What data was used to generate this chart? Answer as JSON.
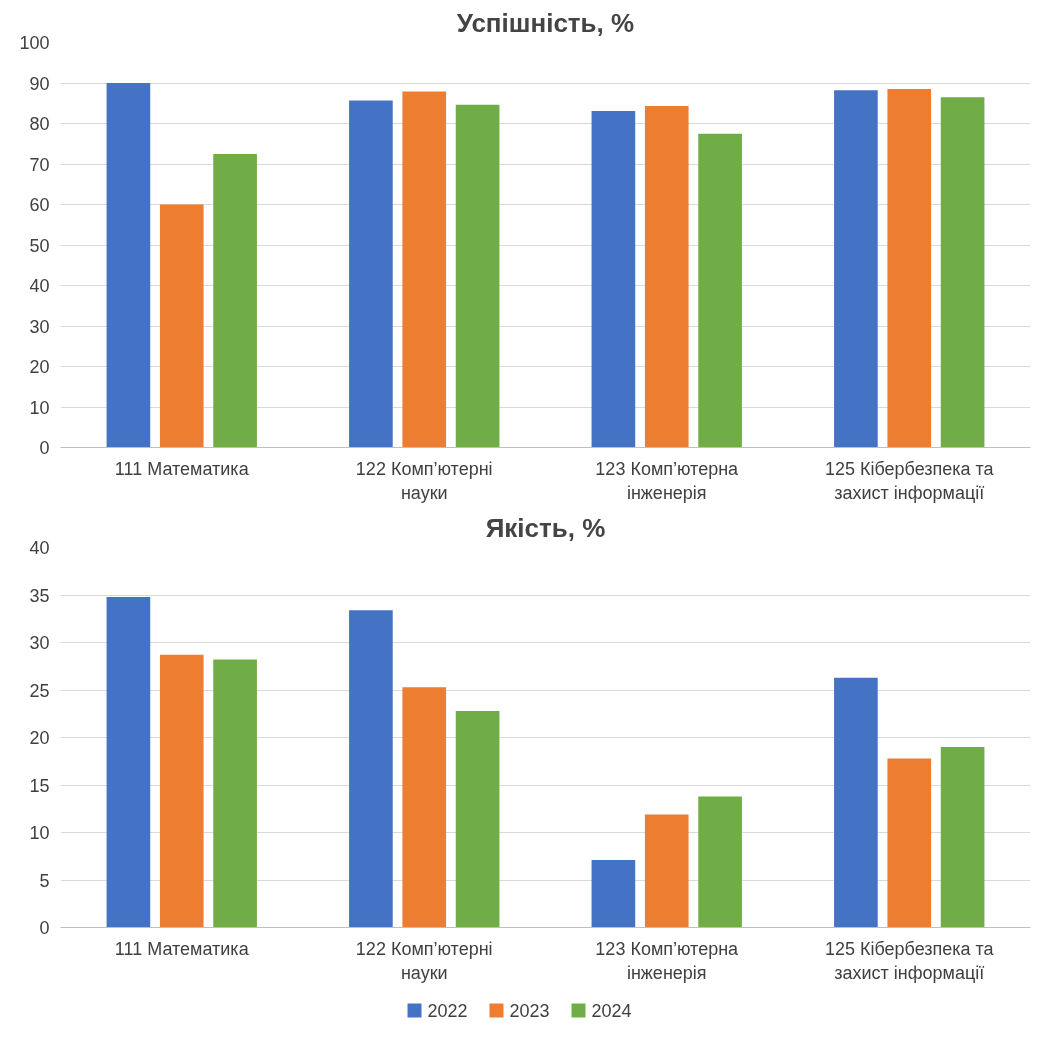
{
  "chart_data": [
    {
      "type": "bar",
      "title": "Успішність, %",
      "categories": [
        "111 Математика",
        "122 Комп’ютерні науки",
        "123 Комп’ютерна інженерія",
        "125 Кібербезпека та захист інформації"
      ],
      "series": [
        {
          "name": "2022",
          "color": "#4472c4",
          "values": [
            90,
            85.7,
            83.1,
            88.2
          ]
        },
        {
          "name": "2023",
          "color": "#ed7d31",
          "values": [
            60,
            87.9,
            84.3,
            88.5
          ]
        },
        {
          "name": "2024",
          "color": "#70ad47",
          "values": [
            72.5,
            84.6,
            77.5,
            86.5
          ]
        }
      ],
      "ylim": [
        0,
        100
      ],
      "yticks": [
        0,
        10,
        20,
        30,
        40,
        50,
        60,
        70,
        80,
        90,
        100
      ],
      "grid": "y",
      "legend": "bottom"
    },
    {
      "type": "bar",
      "title": "Якість, %",
      "categories": [
        "111 Математика",
        "122 Комп’ютерні науки",
        "123 Комп’ютерна інженерія",
        "125 Кібербезпека та захист інформації"
      ],
      "series": [
        {
          "name": "2022",
          "color": "#4472c4",
          "values": [
            34.8,
            33.4,
            7.1,
            26.3
          ]
        },
        {
          "name": "2023",
          "color": "#ed7d31",
          "values": [
            28.7,
            25.3,
            11.9,
            17.8
          ]
        },
        {
          "name": "2024",
          "color": "#70ad47",
          "values": [
            28.2,
            22.8,
            13.8,
            19.0
          ]
        }
      ],
      "ylim": [
        0,
        40
      ],
      "yticks": [
        0,
        5,
        10,
        15,
        20,
        25,
        30,
        35,
        40
      ],
      "grid": "y",
      "legend": "bottom"
    }
  ]
}
